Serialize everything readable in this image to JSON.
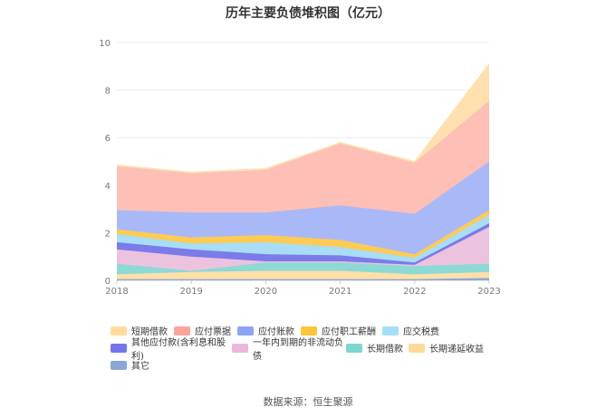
{
  "chart_data": {
    "type": "area",
    "stacked": true,
    "title": "历年主要负债堆积图（亿元）",
    "x": [
      "2018",
      "2019",
      "2020",
      "2021",
      "2022",
      "2023"
    ],
    "y_ticks": [
      "0",
      "2",
      "4",
      "6",
      "8",
      "10"
    ],
    "ylim": [
      0,
      10
    ],
    "grid": true,
    "legend_position": "bottom",
    "series": [
      {
        "name": "其它",
        "color": "#8fa8d6",
        "values": [
          0.05,
          0.05,
          0.05,
          0.05,
          0.05,
          0.1
        ]
      },
      {
        "name": "长期递延收益",
        "color": "#ffe0a8",
        "values": [
          0.2,
          0.3,
          0.35,
          0.35,
          0.2,
          0.25
        ]
      },
      {
        "name": "长期借款",
        "color": "#8dd9d6",
        "values": [
          0.45,
          0.05,
          0.35,
          0.35,
          0.35,
          0.35
        ]
      },
      {
        "name": "一年内到期的非流动负债",
        "color": "#ecc3de",
        "values": [
          0.6,
          0.6,
          0.05,
          0.05,
          0.05,
          1.55
        ]
      },
      {
        "name": "其他应付款(含利息和股利)",
        "color": "#7b7bea",
        "values": [
          0.3,
          0.3,
          0.3,
          0.25,
          0.1,
          0.15
        ]
      },
      {
        "name": "应交税费",
        "color": "#a8ddf5",
        "values": [
          0.35,
          0.25,
          0.5,
          0.35,
          0.2,
          0.35
        ]
      },
      {
        "name": "应付职工薪酬",
        "color": "#ffcb52",
        "values": [
          0.2,
          0.25,
          0.3,
          0.3,
          0.15,
          0.2
        ]
      },
      {
        "name": "应付账款",
        "color": "#a9b9f8",
        "values": [
          0.8,
          1.05,
          0.95,
          1.45,
          1.7,
          2.05
        ]
      },
      {
        "name": "应付票据",
        "color": "#fdbfb6",
        "values": [
          1.85,
          1.65,
          1.8,
          2.6,
          2.15,
          2.55
        ]
      },
      {
        "name": "短期借款",
        "color": "#ffe0ae",
        "values": [
          0.05,
          0.05,
          0.05,
          0.05,
          0.05,
          1.55
        ]
      }
    ],
    "legend": [
      [
        {
          "label": "短期借款",
          "color": "#ffdc9e"
        },
        {
          "label": "应付票据",
          "color": "#fba59a"
        },
        {
          "label": "应付账款",
          "color": "#8da4f5"
        },
        {
          "label": "应付职工薪酬",
          "color": "#ffc53a"
        },
        {
          "label": "应交税费",
          "color": "#a3e0f7"
        }
      ],
      [
        {
          "label": "其他应付款(含利息和股利)",
          "color": "#7575eb"
        },
        {
          "label": "一年内到期的非流动负债",
          "color": "#eab8da"
        },
        {
          "label": "长期借款",
          "color": "#7fd5d1"
        },
        {
          "label": "长期递延收益",
          "color": "#ffd99a"
        }
      ],
      [
        {
          "label": "其它",
          "color": "#8ca6d8"
        }
      ]
    ]
  },
  "source": "数据来源：恒生聚源"
}
